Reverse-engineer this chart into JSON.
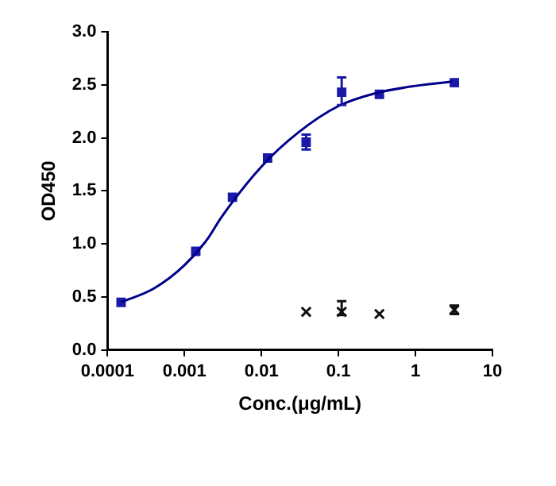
{
  "chart_data": {
    "type": "scatter",
    "xlabel": "Conc.(μg/mL)",
    "ylabel": "OD450",
    "log": "x",
    "grid": false,
    "legend": false,
    "xlim": [
      0.0001,
      10
    ],
    "xticks": [
      0.0001,
      0.001,
      0.01,
      0.1,
      1,
      10
    ],
    "ylim": [
      0,
      3
    ],
    "yticks": [
      {
        "value": 0,
        "label": "0.0"
      },
      0.5,
      {
        "value": 1,
        "label": "1.0"
      },
      1.5,
      {
        "value": 2,
        "label": "2.0"
      },
      2.5,
      {
        "value": 3,
        "label": "3.0"
      }
    ],
    "series": [
      {
        "type": "line",
        "color": "#00008b",
        "marker": "none",
        "x": [
          0.00015,
          0.0004,
          0.001,
          0.002,
          0.003,
          0.01,
          0.03,
          0.1,
          0.3,
          1,
          3
        ],
        "values": [
          0.45,
          0.58,
          0.8,
          1.05,
          1.25,
          1.73,
          2.05,
          2.3,
          2.42,
          2.49,
          2.53
        ]
      },
      {
        "color": "#1a1aa8",
        "marker": "square",
        "x": [
          0.00015,
          0.0014,
          0.0042,
          0.012,
          0.038,
          0.11,
          0.34,
          3.2
        ],
        "values": [
          0.45,
          0.93,
          1.44,
          1.81,
          1.96,
          2.43,
          2.41,
          2.52
        ],
        "errors": [
          null,
          null,
          null,
          null,
          0.07,
          [
            2.31,
            2.57
          ],
          null,
          null
        ]
      },
      {
        "color": "#111111",
        "marker": "cross",
        "x": [
          0.038,
          0.11,
          0.34,
          3.2
        ],
        "values": [
          0.36,
          0.36,
          0.34,
          0.38
        ],
        "errors": [
          null,
          [
            0.33,
            0.46
          ],
          null,
          0.04
        ]
      }
    ]
  }
}
